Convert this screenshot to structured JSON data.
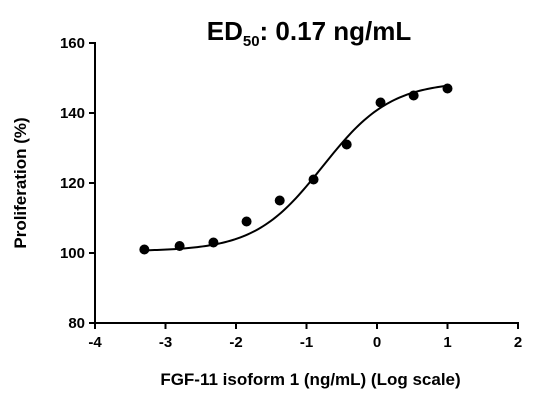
{
  "chart_data": {
    "type": "scatter",
    "title": {
      "prefix": "ED",
      "subscript": "50",
      "suffix": ": 0.17 ng/mL"
    },
    "xlabel": "FGF-11 isoform 1 (ng/mL) (Log scale)",
    "ylabel": "Proliferation (%)",
    "xlim": [
      -4,
      2
    ],
    "ylim": [
      80,
      160
    ],
    "xticks": [
      -4,
      -3,
      -2,
      -1,
      0,
      1,
      2
    ],
    "yticks": [
      80,
      100,
      120,
      140,
      160
    ],
    "grid": false,
    "legend": "none",
    "series": [
      {
        "points": {
          "x": [
            -3.3,
            -2.8,
            -2.32,
            -1.85,
            -1.38,
            -0.9,
            -0.43,
            0.05,
            0.52,
            1.0
          ],
          "y": [
            101,
            102,
            103,
            109,
            115,
            121,
            131,
            143,
            145,
            147
          ]
        },
        "fit_curve": {
          "model": "4PL",
          "bottom": 100.5,
          "top": 149,
          "log_ec50": -0.77,
          "hill_slope": 0.9,
          "x_range": [
            -3.3,
            1.0
          ]
        },
        "color": "#000000"
      }
    ]
  }
}
